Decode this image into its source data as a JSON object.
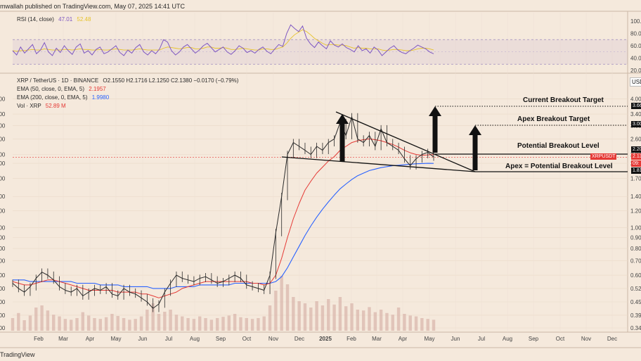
{
  "header": {
    "text": "mwallah published on TradingView.com, May 07, 2025 14:41 UTC"
  },
  "footer": {
    "text": "TradingView"
  },
  "rsi_legend": {
    "label": "RSI (14, close)",
    "value1": "47.01",
    "value2": "52.48"
  },
  "price_legend": {
    "line1": {
      "pair": "XRP / TetherUS · 1D · BINANCE",
      "values": "O2.1550  H2.1716  L2.1250  C2.1380  −0.0170 (−0.79%)"
    },
    "line2": {
      "label": "EMA (50, close, 0, EMA, 5)",
      "value": "2.1957"
    },
    "line3": {
      "label": "EMA (200, close, 0, EMA, 5)",
      "value": "1.9980"
    },
    "line4": {
      "label": "Vol · XRP",
      "value": "52.89 M"
    }
  },
  "annotations": {
    "current_target": "Current Breakout Target",
    "apex_target": "Apex Breakout Target",
    "potential_level": "Potential Breakout Level",
    "apex_level": "Apex = Potential Breakout Level"
  },
  "price_tags": {
    "t366": "3.66",
    "t300": "3.00",
    "t220": "2.20",
    "xrp_label": "XRPUSDT",
    "xrp_price": "2.13",
    "xrp_time": "09:",
    "t181": "1.81",
    "currency": "USD"
  },
  "colors": {
    "background": "#f5e9dc",
    "candle": "#2a2a2a",
    "ema50": "#e53935",
    "ema200": "#2962ff",
    "rsi": "#7e57c2",
    "rsi_ma": "#e6c229",
    "volume": "#d9b3a9"
  },
  "chart_data": [
    {
      "type": "line",
      "title": "RSI (14, close)",
      "ylim": [
        20,
        100
      ],
      "y_ticks": [
        "100.00",
        "80.00",
        "60.00",
        "40.00",
        "20.00"
      ],
      "bands": [
        30,
        70
      ],
      "series": [
        {
          "name": "RSI",
          "values": [
            52,
            45,
            58,
            48,
            55,
            62,
            47,
            53,
            65,
            50,
            44,
            56,
            49,
            60,
            52,
            46,
            58,
            63,
            48,
            52,
            45,
            54,
            58,
            47,
            50,
            55,
            60,
            49,
            44,
            53,
            48,
            57,
            62,
            50,
            45,
            52,
            47,
            55,
            70,
            66,
            52,
            45,
            50,
            58,
            62,
            55,
            48,
            53,
            60,
            64,
            57,
            50,
            54,
            58,
            50,
            46,
            52,
            60,
            56,
            49,
            52,
            48,
            54,
            58,
            51,
            47,
            55,
            62,
            59,
            80,
            94,
            88,
            83,
            92,
            72,
            63,
            57,
            66,
            60,
            55,
            68,
            61,
            58,
            63,
            57,
            54,
            50,
            60,
            52,
            55,
            48,
            58,
            53,
            44,
            50,
            56,
            60,
            53,
            49,
            47,
            52,
            56,
            61,
            58,
            55,
            50,
            47
          ]
        },
        {
          "name": "RSI MA",
          "values": [
            52,
            51,
            52,
            52,
            53,
            54,
            53,
            53,
            55,
            54,
            53,
            53,
            53,
            54,
            54,
            53,
            54,
            55,
            54,
            54,
            53,
            53,
            54,
            53,
            53,
            54,
            55,
            54,
            53,
            53,
            53,
            54,
            55,
            54,
            53,
            53,
            53,
            53,
            56,
            58,
            57,
            56,
            55,
            56,
            57,
            57,
            55,
            55,
            56,
            58,
            58,
            56,
            56,
            57,
            56,
            54,
            54,
            55,
            56,
            55,
            54,
            53,
            53,
            55,
            55,
            54,
            54,
            56,
            58,
            64,
            72,
            78,
            82,
            86,
            83,
            78,
            72,
            68,
            64,
            61,
            62,
            62,
            61,
            61,
            60,
            58,
            56,
            57,
            56,
            56,
            55,
            55,
            55,
            53,
            52,
            53,
            54,
            54,
            53,
            52,
            52,
            53,
            55,
            56,
            56,
            55,
            53
          ]
        }
      ]
    },
    {
      "type": "line",
      "title": "XRP / TetherUS · 1D · BINANCE",
      "scale": "log",
      "ylim": [
        0.34,
        4.4
      ],
      "y_ticks": [
        4.0,
        3.4,
        3.0,
        2.6,
        2.2,
        2.0,
        1.7,
        1.4,
        1.2,
        1.0,
        0.9,
        0.8,
        0.7,
        0.6,
        0.52,
        0.45,
        0.39,
        0.34
      ],
      "x_ticks": [
        "Feb",
        "Mar",
        "Apr",
        "May",
        "Jun",
        "Jul",
        "Aug",
        "Sep",
        "Oct",
        "Nov",
        "Dec",
        "2025",
        "Feb",
        "Mar",
        "Apr",
        "May",
        "Jun",
        "Jul",
        "Aug",
        "Sep",
        "Oct",
        "Nov",
        "Dec"
      ],
      "series": [
        {
          "name": "XRP",
          "values": [
            0.55,
            0.52,
            0.5,
            0.53,
            0.58,
            0.62,
            0.6,
            0.57,
            0.53,
            0.51,
            0.5,
            0.52,
            0.48,
            0.5,
            0.52,
            0.51,
            0.53,
            0.49,
            0.48,
            0.52,
            0.5,
            0.49,
            0.47,
            0.45,
            0.42,
            0.44,
            0.5,
            0.55,
            0.6,
            0.58,
            0.57,
            0.56,
            0.58,
            0.59,
            0.57,
            0.55,
            0.56,
            0.58,
            0.6,
            0.58,
            0.54,
            0.53,
            0.52,
            0.51,
            0.6,
            0.95,
            1.4,
            2.2,
            2.5,
            2.4,
            2.3,
            2.2,
            2.4,
            2.3,
            2.5,
            2.6,
            3.1,
            2.7,
            3.3,
            2.6,
            2.5,
            2.7,
            2.4,
            2.9,
            2.5,
            2.4,
            2.3,
            2.1,
            1.95,
            2.1,
            2.2,
            2.25,
            2.14
          ]
        },
        {
          "name": "EMA 50",
          "values": [
            0.56,
            0.55,
            0.54,
            0.54,
            0.55,
            0.56,
            0.57,
            0.57,
            0.56,
            0.55,
            0.54,
            0.53,
            0.52,
            0.51,
            0.51,
            0.51,
            0.51,
            0.51,
            0.5,
            0.5,
            0.5,
            0.5,
            0.49,
            0.49,
            0.48,
            0.47,
            0.48,
            0.49,
            0.5,
            0.52,
            0.53,
            0.54,
            0.55,
            0.56,
            0.56,
            0.56,
            0.56,
            0.56,
            0.56,
            0.56,
            0.56,
            0.55,
            0.55,
            0.54,
            0.55,
            0.6,
            0.72,
            0.9,
            1.1,
            1.3,
            1.5,
            1.65,
            1.8,
            1.92,
            2.05,
            2.15,
            2.3,
            2.4,
            2.5,
            2.55,
            2.58,
            2.6,
            2.58,
            2.55,
            2.5,
            2.45,
            2.38,
            2.3,
            2.24,
            2.2,
            2.18,
            2.19,
            2.196
          ]
        },
        {
          "name": "EMA 200",
          "values": [
            0.57,
            0.57,
            0.57,
            0.56,
            0.56,
            0.56,
            0.56,
            0.56,
            0.56,
            0.56,
            0.56,
            0.55,
            0.55,
            0.55,
            0.55,
            0.54,
            0.54,
            0.54,
            0.54,
            0.53,
            0.53,
            0.53,
            0.53,
            0.53,
            0.52,
            0.52,
            0.52,
            0.52,
            0.53,
            0.53,
            0.53,
            0.53,
            0.54,
            0.54,
            0.54,
            0.54,
            0.54,
            0.54,
            0.55,
            0.55,
            0.55,
            0.55,
            0.55,
            0.55,
            0.55,
            0.56,
            0.59,
            0.65,
            0.73,
            0.82,
            0.92,
            1.02,
            1.12,
            1.22,
            1.32,
            1.42,
            1.52,
            1.6,
            1.68,
            1.75,
            1.8,
            1.85,
            1.88,
            1.91,
            1.93,
            1.95,
            1.96,
            1.97,
            1.98,
            1.99,
            1.995,
            2.0,
            1.998
          ]
        },
        {
          "name": "Vol",
          "values": [
            30,
            42,
            25,
            36,
            55,
            60,
            48,
            38,
            34,
            28,
            26,
            30,
            44,
            36,
            30,
            28,
            32,
            40,
            35,
            30,
            26,
            28,
            34,
            50,
            65,
            40,
            45,
            50,
            38,
            34,
            30,
            28,
            34,
            30,
            26,
            30,
            33,
            36,
            40,
            32,
            30,
            28,
            30,
            34,
            60,
            95,
            130,
            110,
            80,
            70,
            65,
            55,
            70,
            60,
            75,
            62,
            80,
            58,
            65,
            50,
            48,
            56,
            44,
            50,
            42,
            38,
            55,
            40,
            36,
            34,
            30,
            28,
            26
          ]
        }
      ]
    }
  ]
}
